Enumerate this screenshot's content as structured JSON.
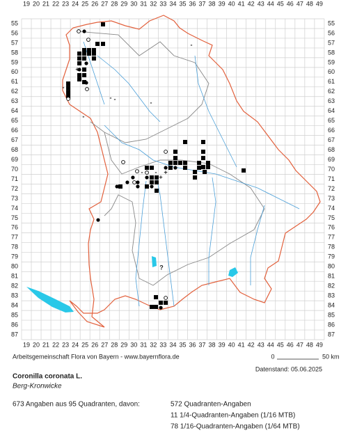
{
  "grid": {
    "columns": [
      19,
      20,
      21,
      22,
      23,
      24,
      25,
      26,
      27,
      28,
      29,
      30,
      31,
      32,
      33,
      34,
      35,
      36,
      37,
      38,
      39,
      40,
      41,
      42,
      43,
      44,
      45,
      46,
      47,
      48,
      49
    ],
    "rows": [
      55,
      56,
      57,
      58,
      59,
      60,
      61,
      62,
      63,
      64,
      65,
      66,
      67,
      68,
      69,
      70,
      71,
      72,
      73,
      74,
      75,
      76,
      77,
      78,
      79,
      80,
      81,
      82,
      83,
      84,
      85,
      86,
      87
    ]
  },
  "markers": [
    {
      "x": 26.84,
      "y": 55.07,
      "symbol": "square"
    },
    {
      "x": 26.27,
      "y": 57.08,
      "symbol": "square"
    },
    {
      "x": 26.84,
      "y": 57.08,
      "symbol": "square"
    },
    {
      "x": 24.92,
      "y": 57.72,
      "symbol": "square"
    },
    {
      "x": 25.41,
      "y": 57.72,
      "symbol": "square"
    },
    {
      "x": 25.91,
      "y": 57.72,
      "symbol": "square"
    },
    {
      "x": 24.42,
      "y": 58.08,
      "symbol": "square"
    },
    {
      "x": 24.92,
      "y": 58.08,
      "symbol": "square"
    },
    {
      "x": 25.41,
      "y": 58.08,
      "symbol": "square"
    },
    {
      "x": 25.91,
      "y": 58.08,
      "symbol": "square"
    },
    {
      "x": 24.42,
      "y": 58.58,
      "symbol": "square"
    },
    {
      "x": 24.92,
      "y": 58.58,
      "symbol": "square"
    },
    {
      "x": 25.91,
      "y": 58.58,
      "symbol": "square"
    },
    {
      "x": 24.42,
      "y": 59.08,
      "symbol": "square"
    },
    {
      "x": 24.92,
      "y": 59.72,
      "symbol": "square"
    },
    {
      "x": 24.42,
      "y": 60.3,
      "symbol": "square"
    },
    {
      "x": 24.92,
      "y": 60.3,
      "symbol": "square"
    },
    {
      "x": 24.42,
      "y": 60.73,
      "symbol": "square"
    },
    {
      "x": 24.92,
      "y": 61.01,
      "symbol": "square"
    },
    {
      "x": 23.28,
      "y": 61.16,
      "symbol": "square"
    },
    {
      "x": 23.28,
      "y": 61.59,
      "symbol": "square"
    },
    {
      "x": 23.28,
      "y": 62.02,
      "symbol": "square"
    },
    {
      "x": 23.28,
      "y": 62.44,
      "symbol": "square"
    },
    {
      "x": 35.25,
      "y": 67.17,
      "symbol": "square"
    },
    {
      "x": 37.1,
      "y": 67.17,
      "symbol": "square"
    },
    {
      "x": 34.25,
      "y": 68.17,
      "symbol": "square"
    },
    {
      "x": 37.1,
      "y": 68.17,
      "symbol": "square"
    },
    {
      "x": 34.25,
      "y": 68.82,
      "symbol": "square"
    },
    {
      "x": 37.1,
      "y": 68.82,
      "symbol": "square"
    },
    {
      "x": 33.75,
      "y": 69.32,
      "symbol": "square"
    },
    {
      "x": 34.25,
      "y": 69.32,
      "symbol": "square"
    },
    {
      "x": 34.75,
      "y": 69.32,
      "symbol": "square"
    },
    {
      "x": 35.25,
      "y": 69.32,
      "symbol": "square"
    },
    {
      "x": 36.68,
      "y": 69.32,
      "symbol": "square"
    },
    {
      "x": 37.6,
      "y": 69.32,
      "symbol": "square"
    },
    {
      "x": 37.1,
      "y": 69.75,
      "symbol": "square"
    },
    {
      "x": 37.6,
      "y": 69.75,
      "symbol": "square"
    },
    {
      "x": 31.33,
      "y": 69.82,
      "symbol": "square"
    },
    {
      "x": 31.83,
      "y": 69.82,
      "symbol": "square"
    },
    {
      "x": 33.75,
      "y": 69.82,
      "symbol": "square"
    },
    {
      "x": 35.25,
      "y": 69.82,
      "symbol": "square"
    },
    {
      "x": 36.68,
      "y": 69.82,
      "symbol": "square"
    },
    {
      "x": 36.25,
      "y": 70.25,
      "symbol": "square"
    },
    {
      "x": 37.25,
      "y": 70.25,
      "symbol": "square"
    },
    {
      "x": 31.83,
      "y": 70.82,
      "symbol": "square"
    },
    {
      "x": 32.33,
      "y": 70.82,
      "symbol": "square"
    },
    {
      "x": 36.25,
      "y": 70.82,
      "symbol": "square"
    },
    {
      "x": 31.83,
      "y": 71.32,
      "symbol": "square"
    },
    {
      "x": 32.33,
      "y": 71.32,
      "symbol": "square"
    },
    {
      "x": 31.33,
      "y": 71.75,
      "symbol": "square"
    },
    {
      "x": 32.33,
      "y": 72.18,
      "symbol": "square"
    },
    {
      "x": 28.62,
      "y": 71.75,
      "symbol": "square"
    },
    {
      "x": 41.24,
      "y": 70.1,
      "symbol": "square"
    },
    {
      "x": 32.26,
      "y": 83.13,
      "symbol": "square"
    },
    {
      "x": 32.76,
      "y": 83.7,
      "symbol": "square"
    },
    {
      "x": 33.26,
      "y": 83.7,
      "symbol": "square"
    },
    {
      "x": 31.83,
      "y": 84.13,
      "symbol": "square"
    },
    {
      "x": 32.26,
      "y": 84.13,
      "symbol": "square"
    },
    {
      "x": 24.92,
      "y": 55.79,
      "symbol": "dot"
    },
    {
      "x": 25.13,
      "y": 59.08,
      "symbol": "dot"
    },
    {
      "x": 24.42,
      "y": 59.72,
      "symbol": "dot"
    },
    {
      "x": 25.13,
      "y": 61.08,
      "symbol": "dot"
    },
    {
      "x": 34.25,
      "y": 69.82,
      "symbol": "dot"
    },
    {
      "x": 31.33,
      "y": 70.82,
      "symbol": "dot"
    },
    {
      "x": 31.83,
      "y": 71.75,
      "symbol": "dot"
    },
    {
      "x": 29.33,
      "y": 71.32,
      "symbol": "dot"
    },
    {
      "x": 29.9,
      "y": 70.82,
      "symbol": "dot"
    },
    {
      "x": 30.4,
      "y": 71.32,
      "symbol": "dot"
    },
    {
      "x": 30.4,
      "y": 71.75,
      "symbol": "dot"
    },
    {
      "x": 28.27,
      "y": 71.75,
      "symbol": "dot"
    },
    {
      "x": 26.34,
      "y": 75.19,
      "symbol": "dot"
    },
    {
      "x": 33.26,
      "y": 69.82,
      "symbol": "dot"
    },
    {
      "x": 32.76,
      "y": 84.21,
      "symbol": "dot"
    },
    {
      "x": 24.35,
      "y": 55.79,
      "symbol": "circle"
    },
    {
      "x": 25.34,
      "y": 56.65,
      "symbol": "circle"
    },
    {
      "x": 25.2,
      "y": 61.73,
      "symbol": "circle"
    },
    {
      "x": 23.28,
      "y": 62.73,
      "symbol": "circle"
    },
    {
      "x": 28.91,
      "y": 69.24,
      "symbol": "circle"
    },
    {
      "x": 33.26,
      "y": 68.17,
      "symbol": "circle"
    },
    {
      "x": 30.05,
      "y": 71.32,
      "symbol": "circle"
    },
    {
      "x": 30.33,
      "y": 70.18,
      "symbol": "circle"
    },
    {
      "x": 31.33,
      "y": 70.32,
      "symbol": "circle"
    },
    {
      "x": 33.26,
      "y": 83.2,
      "symbol": "circle"
    },
    {
      "x": 24.2,
      "y": 59.72,
      "symbol": "+"
    },
    {
      "x": 33.26,
      "y": 70.32,
      "symbol": "+"
    },
    {
      "x": 32.76,
      "y": 70.82,
      "symbol": "+"
    },
    {
      "x": 22.78,
      "y": 61.59,
      "symbol": "-"
    },
    {
      "x": 24.84,
      "y": 64.59,
      "symbol": "-"
    },
    {
      "x": 27.62,
      "y": 62.66,
      "symbol": "-"
    },
    {
      "x": 28.05,
      "y": 62.8,
      "symbol": "-"
    },
    {
      "x": 31.76,
      "y": 63.16,
      "symbol": "-"
    },
    {
      "x": 35.89,
      "y": 57.22,
      "symbol": "-"
    },
    {
      "x": 32.26,
      "y": 70.32,
      "symbol": "-"
    },
    {
      "x": 30.83,
      "y": 70.32,
      "symbol": "-"
    },
    {
      "x": 32.83,
      "y": 80.13,
      "symbol": "?"
    }
  ],
  "footer": {
    "credit": "Arbeitsgemeinschaft Flora von Bayern - www.bayernflora.de",
    "scale_start": "0",
    "scale_end": "50 km",
    "date": "Datenstand: 05.06.2025"
  },
  "species": {
    "name": "Coronilla coronata L.",
    "common_name": "Berg-Kronwicke"
  },
  "summary": {
    "total": "673 Angaben aus 95 Quadranten, davon:",
    "breakdown": [
      "572 Quadranten-Angaben",
      "11 1/4-Quadranten-Angaben (1/16 MTB)",
      "78 1/16-Quadranten-Angaben (1/64 MTB)"
    ]
  }
}
